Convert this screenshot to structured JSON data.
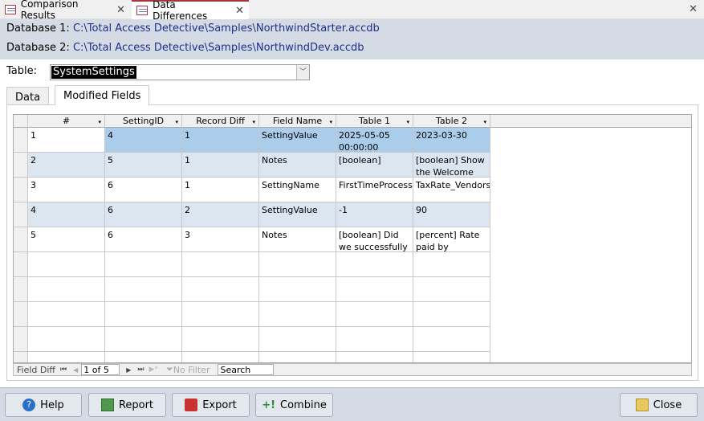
{
  "doc_tabs": [
    {
      "label": "Comparison Results",
      "active": false
    },
    {
      "label": "Data Differences",
      "active": true
    }
  ],
  "database1": {
    "label": "Database 1:",
    "path": "C:\\Total Access Detective\\Samples\\NorthwindStarter.accdb"
  },
  "database2": {
    "label": "Database 2:",
    "path": "C:\\Total Access Detective\\Samples\\NorthwindDev.accdb"
  },
  "table": {
    "label": "Table:",
    "value": "SystemSettings"
  },
  "form_tabs": [
    {
      "label": "Data",
      "active": false
    },
    {
      "label": "Modified Fields",
      "active": true
    }
  ],
  "grid": {
    "columns": [
      "#",
      "SettingID",
      "Record Diff",
      "Field Name",
      "Table 1",
      "Table 2"
    ],
    "rows": [
      [
        "1",
        "4",
        "1",
        "SettingValue",
        "2025-05-05 00:00:00",
        "2023-03-30"
      ],
      [
        "2",
        "5",
        "1",
        "Notes",
        "[boolean]",
        "[boolean] Show the Welcome"
      ],
      [
        "3",
        "6",
        "1",
        "SettingName",
        "FirstTimeProcessingSuccess",
        "TaxRate_Vendors"
      ],
      [
        "4",
        "6",
        "2",
        "SettingValue",
        "-1",
        "90"
      ],
      [
        "5",
        "6",
        "3",
        "Notes",
        "[boolean] Did we successfully",
        "[percent] Rate paid by"
      ]
    ]
  },
  "navigator": {
    "label": "Field Diff",
    "record": "1 of 5",
    "filter": "No Filter",
    "search": "Search"
  },
  "buttons": {
    "help": "Help",
    "report": "Report",
    "export": "Export",
    "combine": "Combine",
    "close": "Close"
  },
  "colors": {
    "selected_row": "#a9cdea",
    "alt_row": "#dce6f0",
    "panel": "#d5dbe5",
    "path_text": "#1f2f8a"
  }
}
